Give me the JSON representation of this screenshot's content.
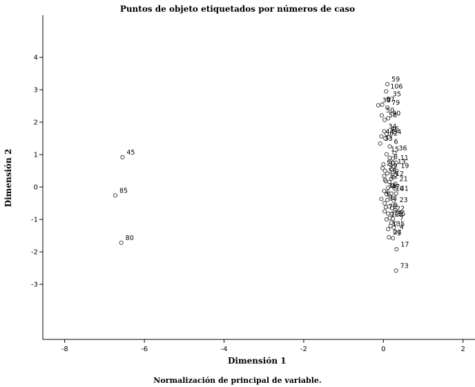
{
  "chart_data": {
    "type": "scatter",
    "title": "Puntos de objeto etiquetados por números de caso",
    "xlabel": "Dimensión 1",
    "ylabel": "Dimensión 2",
    "note": "Normalización de principal de variable.",
    "xlim": [
      -8.55,
      2.3
    ],
    "ylim": [
      -4.7,
      5.3
    ],
    "xticks": [
      -8,
      -6,
      -4,
      -2,
      0,
      2
    ],
    "yticks": [
      -3,
      -2,
      -1,
      0,
      1,
      2,
      3,
      4
    ],
    "grid": false,
    "points": [
      {
        "label": "45",
        "x": -6.55,
        "y": 0.92
      },
      {
        "label": "85",
        "x": -6.73,
        "y": -0.26
      },
      {
        "label": "80",
        "x": -6.58,
        "y": -1.72
      },
      {
        "label": "59",
        "x": 0.1,
        "y": 3.17
      },
      {
        "label": "106",
        "x": 0.07,
        "y": 2.95
      },
      {
        "label": "35",
        "x": 0.13,
        "y": 2.72
      },
      {
        "label": "30",
        "x": -0.13,
        "y": 2.52
      },
      {
        "label": "57",
        "x": -0.03,
        "y": 2.54
      },
      {
        "label": "79",
        "x": 0.1,
        "y": 2.45
      },
      {
        "label": "50",
        "x": -0.04,
        "y": 2.21
      },
      {
        "label": "90",
        "x": 0.12,
        "y": 2.12
      },
      {
        "label": "58",
        "x": 0.03,
        "y": 2.07
      },
      {
        "label": "34",
        "x": 0.02,
        "y": 1.72
      },
      {
        "label": "46",
        "x": 0.08,
        "y": 1.64
      },
      {
        "label": "44",
        "x": -0.05,
        "y": 1.56
      },
      {
        "label": "62",
        "x": 0.05,
        "y": 1.5
      },
      {
        "label": "84",
        "x": 0.14,
        "y": 1.54
      },
      {
        "label": "33",
        "x": -0.08,
        "y": 1.34
      },
      {
        "label": "6",
        "x": 0.16,
        "y": 1.25
      },
      {
        "label": "36",
        "x": 0.28,
        "y": 1.05
      },
      {
        "label": "15",
        "x": 0.08,
        "y": 1.01
      },
      {
        "label": "8",
        "x": 0.15,
        "y": 0.78
      },
      {
        "label": "11",
        "x": 0.32,
        "y": 0.75
      },
      {
        "label": "13",
        "x": 0.25,
        "y": 0.63
      },
      {
        "label": "19",
        "x": 0.33,
        "y": 0.5
      },
      {
        "label": "20",
        "x": -0.02,
        "y": 0.58
      },
      {
        "label": "49",
        "x": 0.04,
        "y": 0.5
      },
      {
        "label": "56",
        "x": 0.02,
        "y": 0.34
      },
      {
        "label": "12",
        "x": 0.2,
        "y": 0.26
      },
      {
        "label": "52",
        "x": 0.06,
        "y": 0.18
      },
      {
        "label": "21",
        "x": 0.3,
        "y": 0.1
      },
      {
        "label": "39",
        "x": 0.02,
        "y": -0.12
      },
      {
        "label": "47",
        "x": 0.1,
        "y": -0.15
      },
      {
        "label": "10",
        "x": 0.2,
        "y": -0.2
      },
      {
        "label": "41",
        "x": 0.32,
        "y": -0.2
      },
      {
        "label": "1",
        "x": -0.05,
        "y": -0.37
      },
      {
        "label": "38",
        "x": 0.03,
        "y": -0.5
      },
      {
        "label": "23",
        "x": 0.3,
        "y": -0.55
      },
      {
        "label": "78",
        "x": 0.03,
        "y": -0.75
      },
      {
        "label": "22",
        "x": 0.22,
        "y": -0.82
      },
      {
        "label": "123",
        "x": 0.08,
        "y": -1.0
      },
      {
        "label": "14",
        "x": 0.16,
        "y": -0.95
      },
      {
        "label": "16",
        "x": 0.24,
        "y": -0.98
      },
      {
        "label": "7",
        "x": 0.3,
        "y": -1.12
      },
      {
        "label": "135",
        "x": 0.12,
        "y": -1.3
      },
      {
        "label": "4",
        "x": 0.3,
        "y": -1.38
      },
      {
        "label": "27",
        "x": 0.14,
        "y": -1.55
      },
      {
        "label": "9",
        "x": 0.24,
        "y": -1.58
      },
      {
        "label": "17",
        "x": 0.33,
        "y": -1.92
      },
      {
        "label": "73",
        "x": 0.32,
        "y": -2.58
      }
    ],
    "unlabeled_points": [
      {
        "x": 0.0,
        "y": 0.7
      },
      {
        "x": 0.2,
        "y": 0.55
      },
      {
        "x": 0.1,
        "y": 0.42
      },
      {
        "x": 0.25,
        "y": 0.3
      },
      {
        "x": 0.15,
        "y": 0.15
      },
      {
        "x": 0.22,
        "y": 0.05
      },
      {
        "x": 0.12,
        "y": -0.02
      },
      {
        "x": 0.28,
        "y": -0.05
      },
      {
        "x": 0.18,
        "y": -0.3
      },
      {
        "x": 0.1,
        "y": -0.4
      },
      {
        "x": 0.26,
        "y": -0.42
      },
      {
        "x": 0.14,
        "y": -0.6
      },
      {
        "x": 0.22,
        "y": -0.65
      },
      {
        "x": 0.06,
        "y": -0.62
      },
      {
        "x": 0.3,
        "y": -0.72
      },
      {
        "x": 0.12,
        "y": -0.82
      },
      {
        "x": 0.2,
        "y": -1.1
      },
      {
        "x": 0.18,
        "y": -1.2
      },
      {
        "x": 0.26,
        "y": -1.25
      },
      {
        "x": 0.16,
        "y": 0.9
      },
      {
        "x": 0.24,
        "y": 0.88
      },
      {
        "x": 0.04,
        "y": 0.22
      },
      {
        "x": 0.3,
        "y": 0.38
      },
      {
        "x": 0.08,
        "y": -0.22
      }
    ]
  }
}
